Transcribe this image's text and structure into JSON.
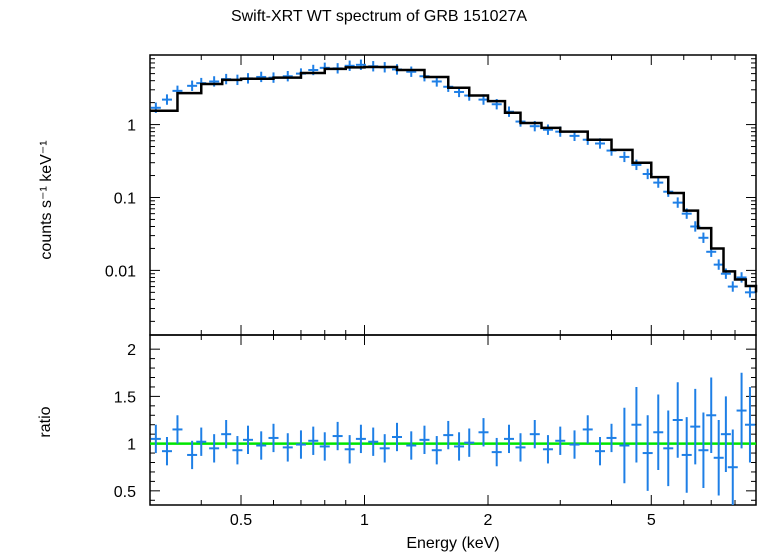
{
  "chart_data": [
    {
      "type": "scatter",
      "panel": "spectrum",
      "title": "Swift-XRT WT spectrum of GRB 151027A",
      "xlabel": "Energy (keV)",
      "ylabel": "counts s⁻¹ keV⁻¹",
      "xscale": "log",
      "yscale": "log",
      "xlim": [
        0.3,
        9.0
      ],
      "ylim": [
        0.0013,
        9.0
      ],
      "yticks": [
        0.01,
        0.1,
        1
      ],
      "yticklabels": [
        "0.01",
        "0.1",
        "1"
      ],
      "data_color": "#1e7fe6",
      "model_color": "#000000",
      "series": [
        {
          "kind": "model",
          "x": [
            0.3,
            0.35,
            0.4,
            0.45,
            0.5,
            0.6,
            0.7,
            0.8,
            0.9,
            1.0,
            1.2,
            1.4,
            1.6,
            1.8,
            2.0,
            2.2,
            2.4,
            2.7,
            3.0,
            3.5,
            4.0,
            4.5,
            5.0,
            5.5,
            6.0,
            6.5,
            7.0,
            7.5,
            8.0,
            8.5,
            9.0
          ],
          "y": [
            1.55,
            2.7,
            3.6,
            4.1,
            4.25,
            4.4,
            5.1,
            5.8,
            6.1,
            6.15,
            5.6,
            4.5,
            3.2,
            2.5,
            2.1,
            1.45,
            1.05,
            0.9,
            0.8,
            0.62,
            0.45,
            0.3,
            0.19,
            0.115,
            0.066,
            0.038,
            0.02,
            0.0097,
            0.0075,
            0.0061,
            0.005
          ]
        },
        {
          "kind": "data",
          "x": [
            0.31,
            0.33,
            0.35,
            0.38,
            0.4,
            0.43,
            0.46,
            0.49,
            0.52,
            0.56,
            0.6,
            0.65,
            0.7,
            0.75,
            0.8,
            0.86,
            0.92,
            0.98,
            1.05,
            1.12,
            1.2,
            1.3,
            1.4,
            1.5,
            1.6,
            1.7,
            1.8,
            1.95,
            2.1,
            2.25,
            2.4,
            2.6,
            2.8,
            3.0,
            3.25,
            3.5,
            3.75,
            4.0,
            4.3,
            4.6,
            4.9,
            5.2,
            5.5,
            5.8,
            6.1,
            6.4,
            6.7,
            7.0,
            7.3,
            7.6,
            7.9,
            8.3,
            8.7
          ],
          "y": [
            1.7,
            2.2,
            2.9,
            3.4,
            3.7,
            3.9,
            4.2,
            4.1,
            4.3,
            4.5,
            4.4,
            4.6,
            5.0,
            5.6,
            6.0,
            5.9,
            6.4,
            6.6,
            6.3,
            6.1,
            5.7,
            5.3,
            4.6,
            3.9,
            3.3,
            2.8,
            2.5,
            2.2,
            1.9,
            1.5,
            1.1,
            0.95,
            0.85,
            0.8,
            0.7,
            0.62,
            0.55,
            0.44,
            0.36,
            0.28,
            0.21,
            0.16,
            0.12,
            0.085,
            0.06,
            0.04,
            0.028,
            0.018,
            0.012,
            0.009,
            0.006,
            0.008,
            0.005
          ]
        }
      ]
    },
    {
      "type": "scatter",
      "panel": "ratio",
      "xlabel": "Energy (keV)",
      "ylabel": "ratio",
      "xscale": "log",
      "xlim": [
        0.3,
        9.0
      ],
      "ylim": [
        0.35,
        2.15
      ],
      "xticks": [
        0.5,
        1,
        2,
        5
      ],
      "xticklabels": [
        "0.5",
        "1",
        "2",
        "5"
      ],
      "yticks": [
        0.5,
        1,
        1.5,
        2
      ],
      "yticklabels": [
        "0.5",
        "1",
        "1.5",
        "2"
      ],
      "reference_line": 1,
      "reference_color": "#00e600",
      "data_color": "#1e7fe6",
      "series": [
        {
          "kind": "data",
          "x": [
            0.31,
            0.33,
            0.35,
            0.38,
            0.4,
            0.43,
            0.46,
            0.49,
            0.52,
            0.56,
            0.6,
            0.65,
            0.7,
            0.75,
            0.8,
            0.86,
            0.92,
            0.98,
            1.05,
            1.12,
            1.2,
            1.3,
            1.4,
            1.5,
            1.6,
            1.7,
            1.8,
            1.95,
            2.1,
            2.25,
            2.4,
            2.6,
            2.8,
            3.0,
            3.25,
            3.5,
            3.75,
            4.0,
            4.3,
            4.6,
            4.9,
            5.2,
            5.5,
            5.8,
            6.1,
            6.4,
            6.7,
            7.0,
            7.3,
            7.6,
            7.9,
            8.3,
            8.7
          ],
          "y": [
            1.05,
            0.92,
            1.15,
            0.88,
            1.02,
            0.95,
            1.1,
            0.93,
            1.04,
            0.98,
            1.06,
            0.96,
            0.99,
            1.03,
            0.97,
            1.08,
            0.94,
            1.05,
            1.02,
            0.95,
            1.07,
            0.98,
            1.04,
            0.93,
            1.09,
            0.97,
            1.01,
            1.12,
            0.91,
            1.05,
            0.96,
            1.1,
            0.94,
            1.03,
            0.99,
            1.15,
            0.92,
            1.06,
            0.98,
            1.2,
            0.9,
            1.12,
            0.95,
            1.25,
            0.88,
            1.18,
            0.93,
            1.3,
            0.85,
            1.1,
            0.75,
            1.35,
            1.2
          ]
        }
      ]
    }
  ]
}
